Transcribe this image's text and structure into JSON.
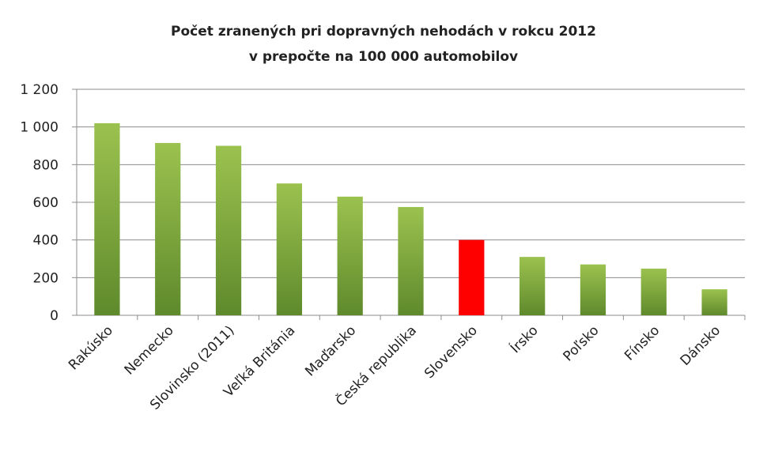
{
  "chart_data": {
    "type": "bar",
    "title": [
      "Počet zranených  pri dopravných  nehodách  v rokcu  2012",
      "v prepočte na 100 000 automobilov"
    ],
    "xlabel": "",
    "ylabel": "",
    "ylim": [
      0,
      1200
    ],
    "yticks": [
      0,
      200,
      400,
      600,
      800,
      1000,
      1200
    ],
    "ytick_labels": [
      "0",
      "200",
      "400",
      "600",
      "800",
      "1 000",
      "1 200"
    ],
    "grid": true,
    "legend": "none",
    "categories": [
      "Rakúsko",
      "Nemecko",
      "Slovinsko (2011)",
      "Veľká Británia",
      "Maďarsko",
      "Česká republika",
      "Slovensko",
      "Írsko",
      "Poľsko",
      "Fínsko",
      "Dánsko"
    ],
    "values": [
      1020,
      915,
      900,
      700,
      630,
      575,
      400,
      310,
      270,
      248,
      138
    ],
    "highlight_category": "Slovensko",
    "colors": {
      "bar_top": "#9bc24f",
      "bar_bottom": "#5f8a2c",
      "highlight": "#ff0000",
      "grid": "#8c8c8c",
      "axis": "#8c8c8c"
    }
  }
}
